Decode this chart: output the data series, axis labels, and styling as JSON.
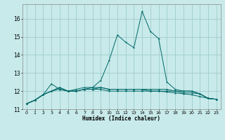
{
  "xlabel": "Humidex (Indice chaleur)",
  "ylabel": "",
  "background_color": "#c8eaea",
  "grid_color": "#a0cccc",
  "line_color": "#006868",
  "xlim": [
    -0.5,
    23.5
  ],
  "ylim": [
    11.0,
    16.8
  ],
  "yticks": [
    11,
    12,
    13,
    14,
    15,
    16
  ],
  "xticks": [
    0,
    1,
    2,
    3,
    4,
    5,
    6,
    7,
    8,
    9,
    10,
    11,
    12,
    13,
    14,
    15,
    16,
    17,
    18,
    19,
    20,
    21,
    22,
    23
  ],
  "series": [
    [
      11.3,
      11.5,
      11.8,
      12.4,
      12.1,
      12.0,
      12.1,
      12.2,
      12.2,
      12.6,
      13.7,
      15.1,
      14.7,
      14.4,
      16.4,
      15.3,
      14.9,
      12.5,
      12.1,
      12.0,
      12.0,
      11.85,
      11.6,
      11.55
    ],
    [
      11.3,
      11.5,
      11.8,
      12.0,
      12.2,
      12.0,
      12.0,
      12.1,
      12.1,
      12.2,
      12.1,
      12.1,
      12.1,
      12.1,
      12.1,
      12.1,
      12.1,
      12.1,
      12.0,
      12.0,
      12.0,
      11.85,
      11.6,
      11.55
    ],
    [
      11.3,
      11.5,
      11.8,
      12.0,
      12.2,
      12.0,
      12.0,
      12.1,
      12.2,
      12.2,
      12.1,
      12.1,
      12.1,
      12.1,
      12.1,
      12.0,
      12.0,
      12.0,
      12.0,
      11.9,
      11.9,
      11.85,
      11.6,
      11.55
    ],
    [
      11.3,
      11.5,
      11.8,
      12.0,
      12.1,
      12.0,
      12.0,
      12.1,
      12.1,
      12.1,
      12.0,
      12.0,
      12.0,
      12.0,
      12.0,
      12.0,
      12.0,
      11.95,
      11.9,
      11.85,
      11.8,
      11.7,
      11.6,
      11.55
    ]
  ]
}
